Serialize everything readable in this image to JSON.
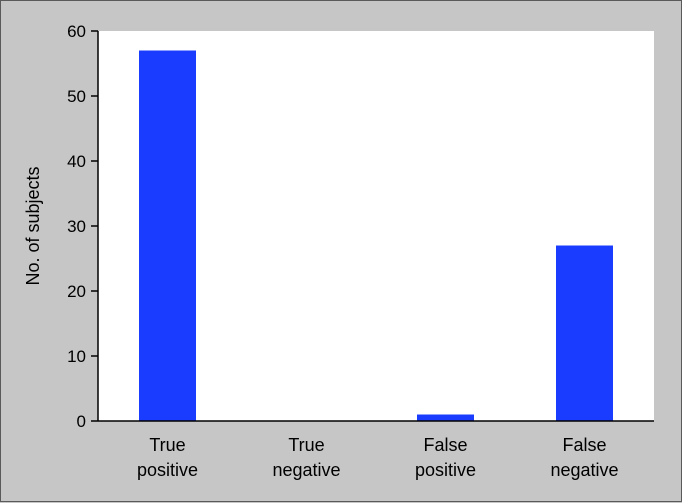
{
  "chart_data": {
    "type": "bar",
    "categories": [
      [
        "True",
        "positive"
      ],
      [
        "True",
        "negative"
      ],
      [
        "False",
        "positive"
      ],
      [
        "False",
        "negative"
      ]
    ],
    "values": [
      57,
      0,
      1,
      27
    ],
    "title": "",
    "xlabel": "",
    "ylabel": "No. of subjects",
    "ylim": [
      0,
      60
    ],
    "yticks": [
      0,
      10,
      20,
      30,
      40,
      50,
      60
    ],
    "grid": false,
    "legend": "none",
    "colors": {
      "bar": "#1a3cff",
      "plot_background": "#ffffff",
      "page_background": "#c6c6c6"
    }
  }
}
